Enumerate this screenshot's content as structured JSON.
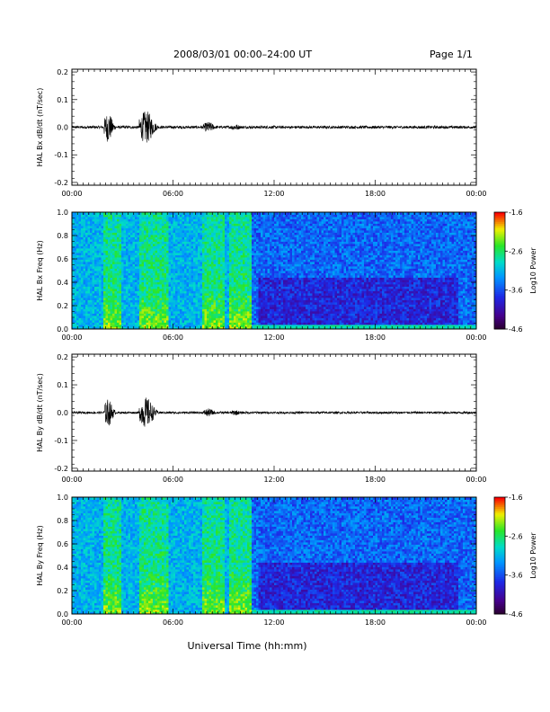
{
  "header": {
    "title": "2008/03/01   00:00–24:00 UT",
    "page": "Page 1/1"
  },
  "xlabel": "Universal Time (hh:mm)",
  "chart_data": [
    {
      "type": "line",
      "ylabel": "HAL Bx dB/dt (nT/sec)",
      "xlim": [
        0,
        24
      ],
      "ylim": [
        -0.21,
        0.21
      ],
      "xticks": [
        "00:00",
        "06:00",
        "12:00",
        "18:00",
        "00:00"
      ],
      "yticks": [
        "-0.2",
        "-0.1",
        "0.0",
        "0.1",
        "0.2"
      ],
      "bursts": [
        {
          "start": 1.9,
          "end": 2.9,
          "amp": 0.055
        },
        {
          "start": 4.0,
          "end": 5.6,
          "amp": 0.06
        },
        {
          "start": 7.8,
          "end": 9.0,
          "amp": 0.02
        },
        {
          "start": 9.4,
          "end": 10.5,
          "amp": 0.012
        }
      ],
      "baseline_amp": 0.005
    },
    {
      "type": "heatmap",
      "ylabel": "HAL Bx Freq (Hz)",
      "xlim": [
        0,
        24
      ],
      "ylim": [
        0,
        1.0
      ],
      "xticks": [
        "00:00",
        "06:00",
        "12:00",
        "18:00",
        "00:00"
      ],
      "yticks": [
        "0.0",
        "0.2",
        "0.4",
        "0.6",
        "0.8",
        "1.0"
      ],
      "colorbar": {
        "label": "Log10 Power",
        "range": [
          -4.6,
          -1.6
        ],
        "ticks": [
          "-1.6",
          "-2.6",
          "-3.6",
          "-4.6"
        ]
      },
      "hot_bands": [
        [
          1.8,
          2.9
        ],
        [
          4.0,
          5.7
        ],
        [
          7.7,
          9.1
        ],
        [
          9.4,
          10.6
        ]
      ],
      "quiet_after": 10.7
    },
    {
      "type": "line",
      "ylabel": "HAL By dB/dt (nT/sec)",
      "xlim": [
        0,
        24
      ],
      "ylim": [
        -0.21,
        0.21
      ],
      "xticks": [
        "00:00",
        "06:00",
        "12:00",
        "18:00",
        "00:00"
      ],
      "yticks": [
        "-0.2",
        "-0.1",
        "0.0",
        "0.1",
        "0.2"
      ],
      "bursts": [
        {
          "start": 1.9,
          "end": 2.9,
          "amp": 0.05
        },
        {
          "start": 4.0,
          "end": 5.6,
          "amp": 0.055
        },
        {
          "start": 7.8,
          "end": 9.0,
          "amp": 0.015
        },
        {
          "start": 9.4,
          "end": 10.5,
          "amp": 0.01
        }
      ],
      "baseline_amp": 0.004
    },
    {
      "type": "heatmap",
      "ylabel": "HAL By Freq (Hz)",
      "xlim": [
        0,
        24
      ],
      "ylim": [
        0,
        1.0
      ],
      "xticks": [
        "00:00",
        "06:00",
        "12:00",
        "18:00",
        "00:00"
      ],
      "yticks": [
        "0.0",
        "0.2",
        "0.4",
        "0.6",
        "0.8",
        "1.0"
      ],
      "colorbar": {
        "label": "Log10 Power",
        "range": [
          -4.6,
          -1.6
        ],
        "ticks": [
          "-1.6",
          "-2.6",
          "-3.6",
          "-4.6"
        ]
      },
      "hot_bands": [
        [
          1.8,
          2.9
        ],
        [
          4.0,
          5.7
        ],
        [
          7.7,
          9.1
        ],
        [
          9.4,
          10.6
        ]
      ],
      "quiet_after": 10.7
    }
  ]
}
